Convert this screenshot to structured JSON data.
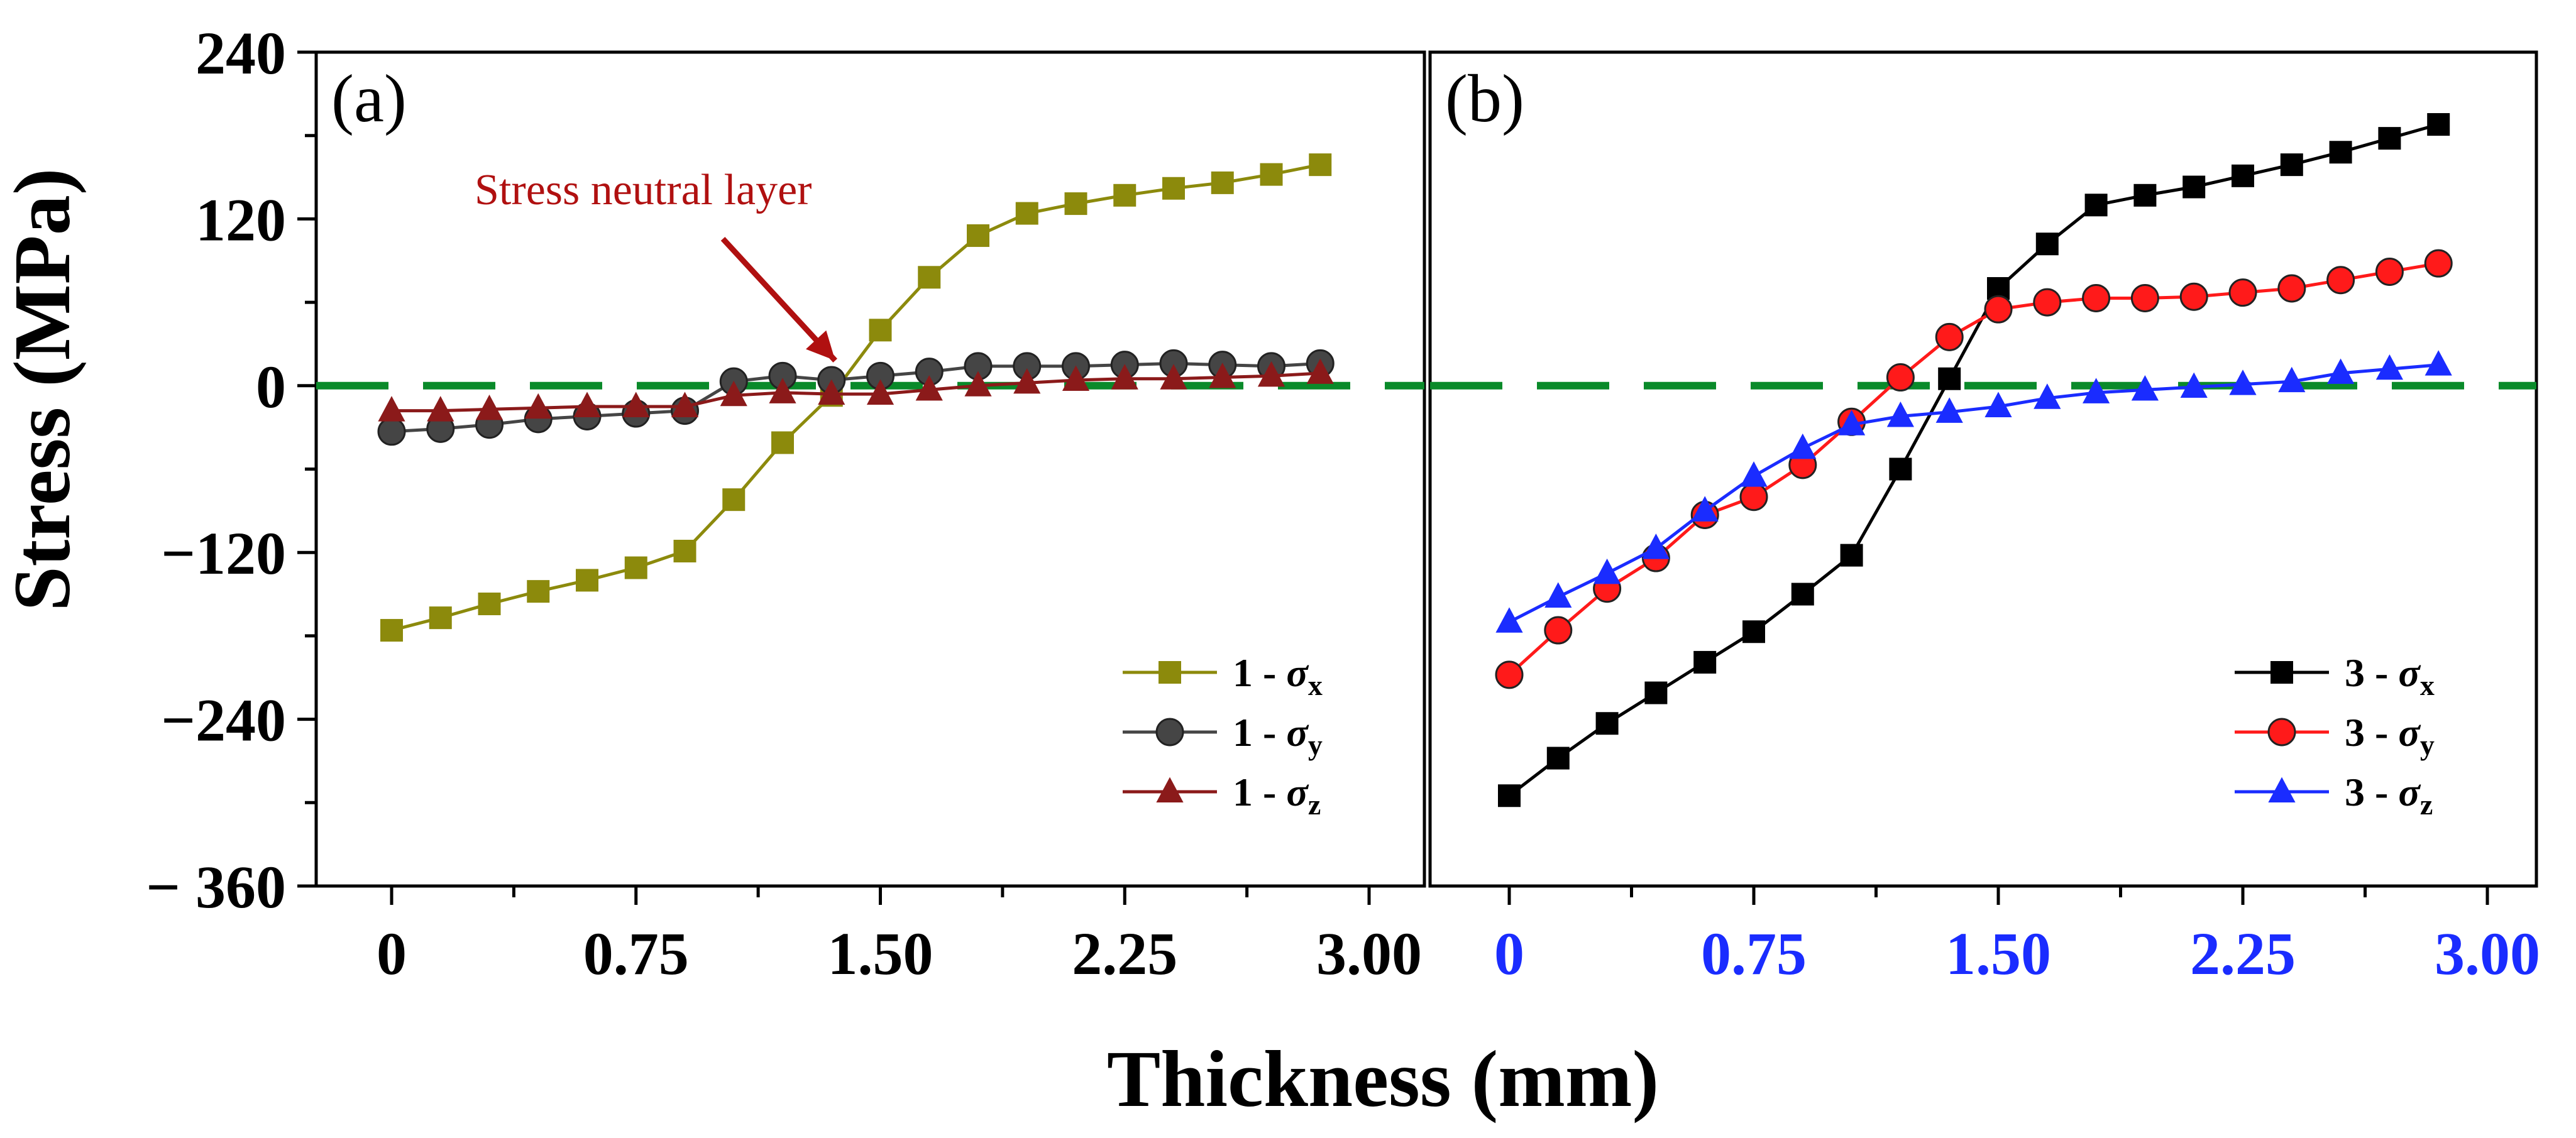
{
  "chart_data": [
    {
      "panel_label": "(a)",
      "type": "line",
      "xlabel": "Thickness (mm)",
      "ylabel": "Stress (MPa)",
      "xlim": [
        0,
        3.0
      ],
      "ylim": [
        -360,
        240
      ],
      "xticks": [
        "0",
        "0.75",
        "1.50",
        "2.25",
        "3.00"
      ],
      "yticks": [
        "240",
        "120",
        "0",
        "−120",
        "−240",
        "− 360"
      ],
      "tick_label_color": "#000000",
      "reference_line": {
        "y": 0,
        "color": "#0a8a2a",
        "style": "dashed"
      },
      "annotation": {
        "text": "Stress neutral layer",
        "color": "#b01010",
        "arrow_to": [
          1.4,
          0
        ]
      },
      "legend_position": "bottom-right",
      "x": [
        0,
        0.15,
        0.3,
        0.45,
        0.6,
        0.75,
        0.9,
        1.05,
        1.2,
        1.35,
        1.5,
        1.65,
        1.8,
        1.95,
        2.1,
        2.25,
        2.4,
        2.55,
        2.7,
        2.85
      ],
      "series": [
        {
          "name_prefix": "1 - ",
          "symbol": "σ",
          "subscript": "x",
          "color": "#8c8a0c",
          "marker": "square",
          "values": [
            -176,
            -167,
            -157,
            -148,
            -140,
            -131,
            -119,
            -82,
            -41,
            -7,
            40,
            78,
            108,
            124,
            131,
            137,
            142,
            146,
            152,
            159
          ]
        },
        {
          "name_prefix": "1 - ",
          "symbol": "σ",
          "subscript": "y",
          "color": "#454545",
          "marker": "circle",
          "values": [
            -33,
            -31,
            -28,
            -24,
            -22,
            -20,
            -18,
            3,
            7,
            4,
            7,
            10,
            14,
            14,
            14,
            15,
            16,
            15,
            14,
            16
          ]
        },
        {
          "name_prefix": "1 - ",
          "symbol": "σ",
          "subscript": "z",
          "color": "#8b1a1a",
          "marker": "triangle",
          "values": [
            -18,
            -18,
            -17,
            -16,
            -15,
            -15,
            -15,
            -7,
            -5,
            -6,
            -6,
            -3,
            0,
            2,
            4,
            5,
            5,
            6,
            7,
            9
          ]
        }
      ]
    },
    {
      "panel_label": "(b)",
      "type": "line",
      "xlabel": "Thickness (mm)",
      "ylabel": "Stress (MPa)",
      "xlim": [
        0,
        3.0
      ],
      "ylim": [
        -360,
        240
      ],
      "xticks": [
        "0",
        "0.75",
        "1.50",
        "2.25",
        "3.00"
      ],
      "tick_label_color": "#1a2cff",
      "reference_line": {
        "y": 0,
        "color": "#0a8a2a",
        "style": "dashed"
      },
      "legend_position": "bottom-right",
      "x": [
        0,
        0.15,
        0.3,
        0.45,
        0.6,
        0.75,
        0.9,
        1.05,
        1.2,
        1.35,
        1.5,
        1.65,
        1.8,
        1.95,
        2.1,
        2.25,
        2.4,
        2.55,
        2.7,
        2.85
      ],
      "series": [
        {
          "name_prefix": "3 - ",
          "symbol": "σ",
          "subscript": "x",
          "color": "#000000",
          "marker": "square",
          "values": [
            -295,
            -268,
            -243,
            -221,
            -199,
            -177,
            -150,
            -122,
            -60,
            5,
            70,
            102,
            130,
            137,
            143,
            151,
            159,
            168,
            178,
            188
          ]
        },
        {
          "name_prefix": "3 - ",
          "symbol": "σ",
          "subscript": "y",
          "color": "#ff1a1a",
          "marker": "circle",
          "values": [
            -208,
            -176,
            -146,
            -124,
            -93,
            -80,
            -57,
            -26,
            6,
            35,
            55,
            60,
            63,
            63,
            64,
            67,
            70,
            76,
            82,
            88
          ]
        },
        {
          "name_prefix": "3 - ",
          "symbol": "σ",
          "subscript": "z",
          "color": "#1a2cff",
          "marker": "triangle",
          "values": [
            -170,
            -152,
            -135,
            -117,
            -90,
            -65,
            -45,
            -28,
            -22,
            -19,
            -15,
            -9,
            -5,
            -3,
            -1,
            1,
            3,
            9,
            12,
            15
          ]
        }
      ]
    }
  ]
}
